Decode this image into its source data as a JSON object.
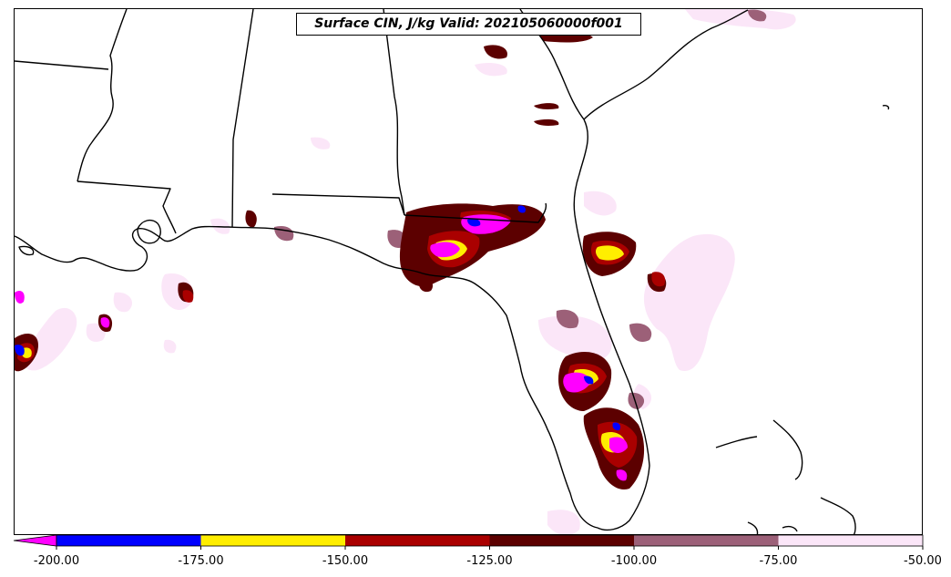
{
  "title": "Surface CIN, J/kg Valid: 202105060000f001",
  "colorbar": {
    "extend": "min",
    "levels": [
      "-200.00",
      "-175.00",
      "-150.00",
      "-125.00",
      "-100.00",
      "-75.00",
      "-50.00"
    ],
    "colors": [
      "#0000ff",
      "#ffee00",
      "#aa0000",
      "#5c0000",
      "#9c6078",
      "#fbe6f8"
    ],
    "under_color": "#ff00ff"
  },
  "legend_colors": {
    "coastline": "#000000",
    "state_border": "#000000"
  }
}
